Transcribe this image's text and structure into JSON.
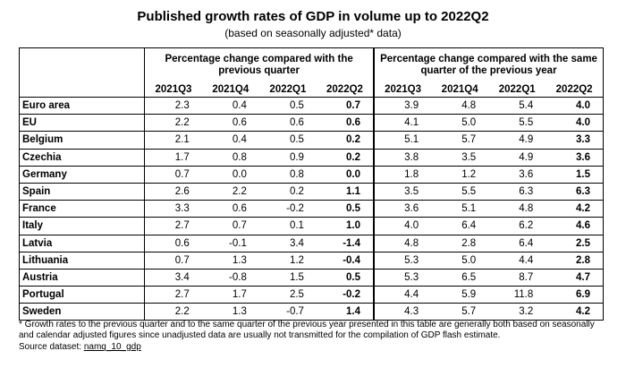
{
  "title": "Published growth rates of GDP in volume up to 2022Q2",
  "subtitle": "(based on seasonally adjusted* data)",
  "group_headers": [
    "Percentage change compared with the previous quarter",
    "Percentage change compared with the same quarter of the previous year"
  ],
  "columns": [
    "2021Q3",
    "2021Q4",
    "2022Q1",
    "2022Q2",
    "2021Q3",
    "2021Q4",
    "2022Q1",
    "2022Q2"
  ],
  "rows": [
    {
      "country": "Euro area",
      "values": [
        "2.3",
        "0.4",
        "0.5",
        "0.7",
        "3.9",
        "4.8",
        "5.4",
        "4.0"
      ]
    },
    {
      "country": "EU",
      "values": [
        "2.2",
        "0.6",
        "0.6",
        "0.6",
        "4.1",
        "5.0",
        "5.5",
        "4.0"
      ]
    },
    {
      "country": "Belgium",
      "values": [
        "2.1",
        "0.4",
        "0.5",
        "0.2",
        "5.1",
        "5.7",
        "4.9",
        "3.3"
      ]
    },
    {
      "country": "Czechia",
      "values": [
        "1.7",
        "0.8",
        "0.9",
        "0.2",
        "3.8",
        "3.5",
        "4.9",
        "3.6"
      ]
    },
    {
      "country": "Germany",
      "values": [
        "0.7",
        "0.0",
        "0.8",
        "0.0",
        "1.8",
        "1.2",
        "3.6",
        "1.5"
      ]
    },
    {
      "country": "Spain",
      "values": [
        "2.6",
        "2.2",
        "0.2",
        "1.1",
        "3.5",
        "5.5",
        "6.3",
        "6.3"
      ]
    },
    {
      "country": "France",
      "values": [
        "3.3",
        "0.6",
        "-0.2",
        "0.5",
        "3.6",
        "5.1",
        "4.8",
        "4.2"
      ]
    },
    {
      "country": "Italy",
      "values": [
        "2.7",
        "0.7",
        "0.1",
        "1.0",
        "4.0",
        "6.4",
        "6.2",
        "4.6"
      ]
    },
    {
      "country": "Latvia",
      "values": [
        "0.6",
        "-0.1",
        "3.4",
        "-1.4",
        "4.8",
        "2.8",
        "6.4",
        "2.5"
      ]
    },
    {
      "country": "Lithuania",
      "values": [
        "0.7",
        "1.3",
        "1.2",
        "-0.4",
        "5.3",
        "5.0",
        "4.4",
        "2.8"
      ]
    },
    {
      "country": "Austria",
      "values": [
        "3.4",
        "-0.8",
        "1.5",
        "0.5",
        "5.3",
        "6.5",
        "8.7",
        "4.7"
      ]
    },
    {
      "country": "Portugal",
      "values": [
        "2.7",
        "1.7",
        "2.5",
        "-0.2",
        "4.4",
        "5.9",
        "11.8",
        "6.9"
      ]
    },
    {
      "country": "Sweden",
      "values": [
        "2.2",
        "1.3",
        "-0.7",
        "1.4",
        "4.3",
        "5.7",
        "3.2",
        "4.2"
      ]
    }
  ],
  "footnote": "* Growth rates to the previous quarter and to the same quarter of the previous year presented in this table are generally both based on seasonally and calendar adjusted figures since unadjusted data are usually not transmitted for the compilation of GDP flash estimate.",
  "source_label": "Source dataset:",
  "source_link": "namq_10_gdp"
}
